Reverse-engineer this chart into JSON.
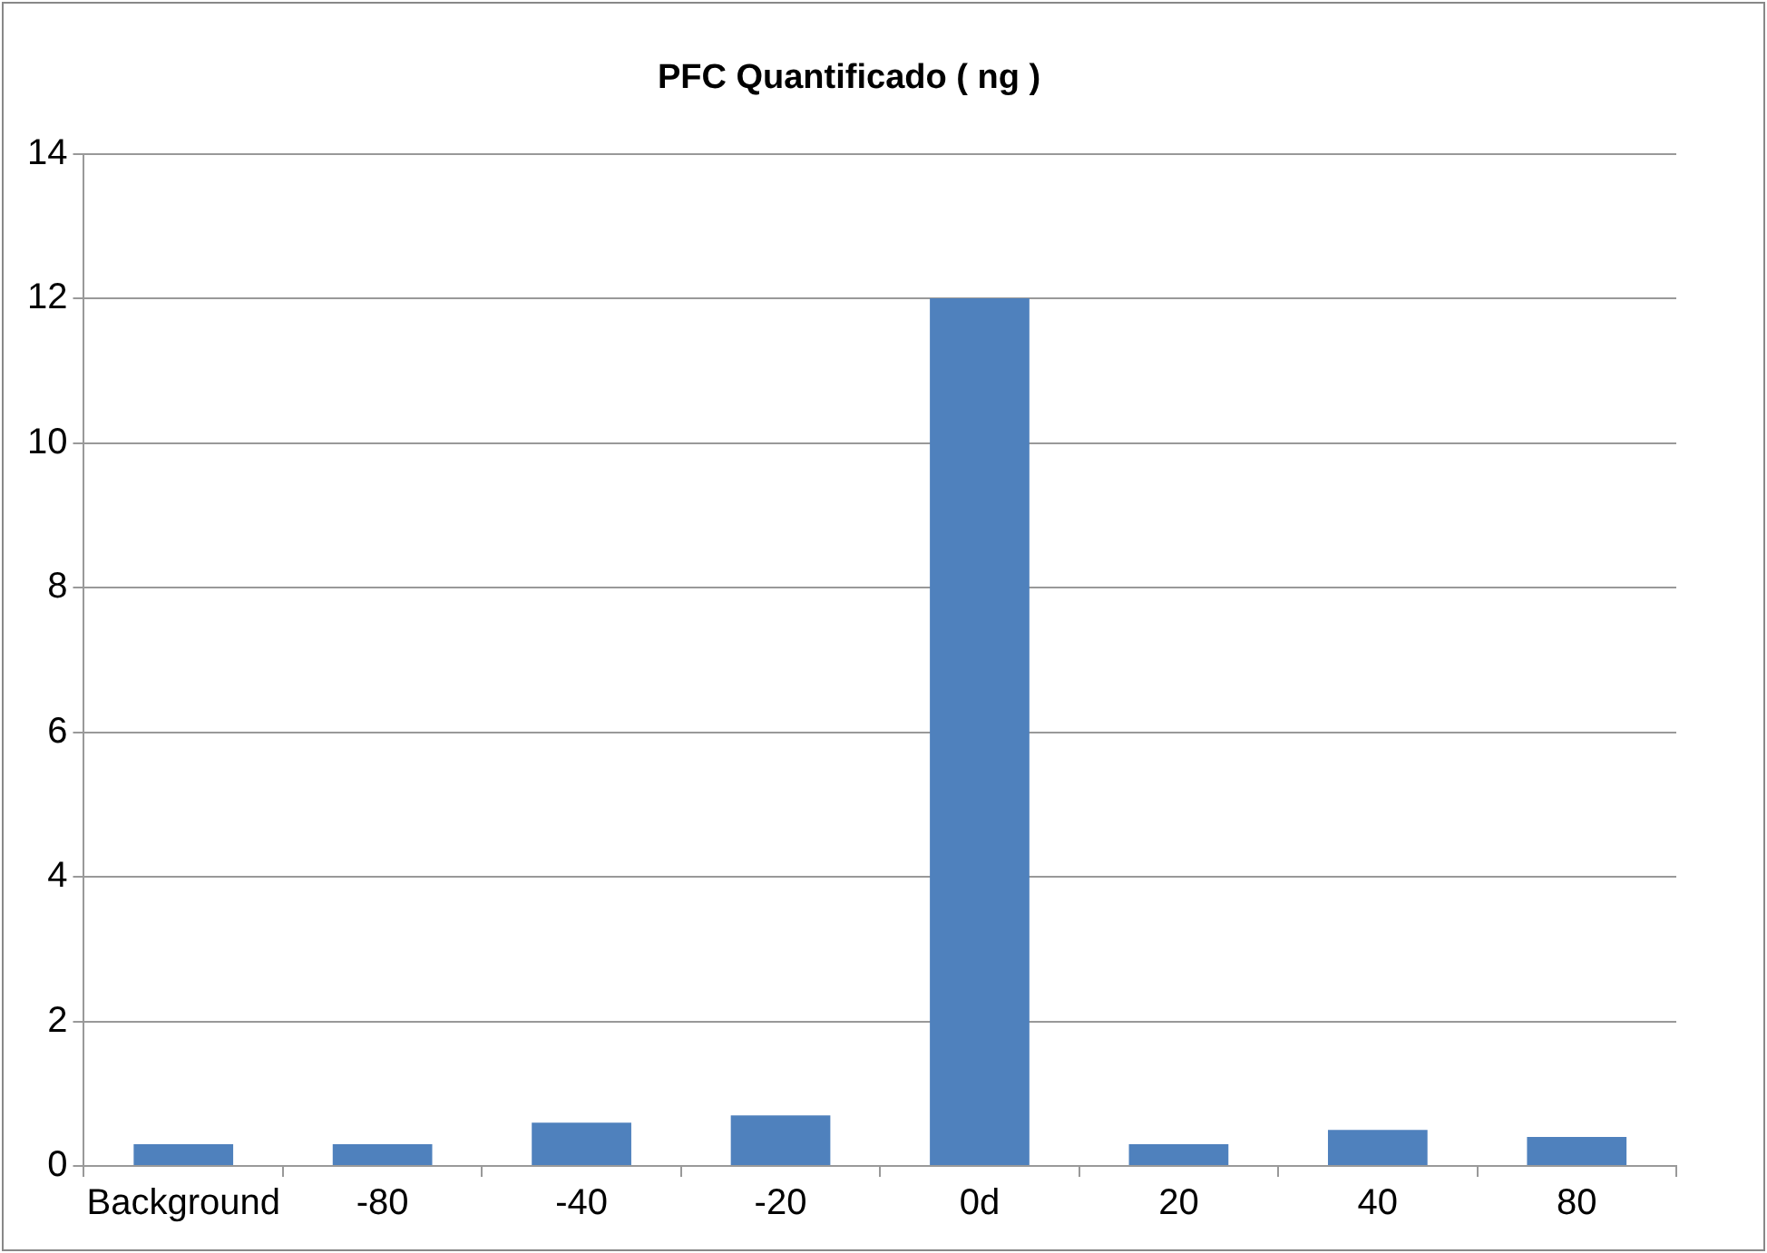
{
  "chart_data": {
    "type": "bar",
    "title": "PFC Quantificado ( ng )",
    "categories": [
      "Background",
      "-80",
      "-40",
      "-20",
      "0d",
      "20",
      "40",
      "80"
    ],
    "values": [
      0.3,
      0.3,
      0.6,
      0.7,
      12.0,
      0.3,
      0.5,
      0.4
    ],
    "color": "#4f81bd",
    "ylim": [
      0,
      14
    ],
    "yticks": [
      0,
      2,
      4,
      6,
      8,
      10,
      12,
      14
    ],
    "grid": "y"
  }
}
